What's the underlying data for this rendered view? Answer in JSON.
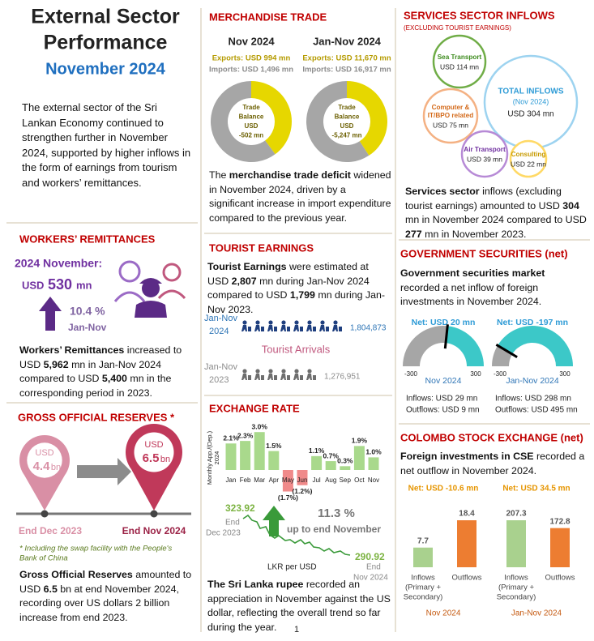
{
  "header": {
    "title_lines": [
      "External Sector",
      "Performance"
    ],
    "subtitle": "November 2024"
  },
  "intro": "The external sector of the Sri Lankan Economy continued to strengthen further in November 2024, supported by higher inflows in the form of earnings from tourism and workers’ remittances.",
  "remittances": {
    "heading": "WORKERS’ REMITTANCES",
    "period": "2024 November:",
    "currency": "USD",
    "amount": "530",
    "unit": "mn",
    "growth": "10.4 %",
    "growth_period": "Jan-Nov",
    "body": [
      {
        "text": "Workers’ Remittances",
        "bold": true
      },
      {
        "text": " increased to USD "
      },
      {
        "text": "5,962",
        "bold": true
      },
      {
        "text": " mn in Jan-Nov 2024 compared to USD "
      },
      {
        "text": "5,400",
        "bold": true
      },
      {
        "text": " mn in the corresponding period in 2023."
      }
    ]
  },
  "reserves": {
    "heading": "GROSS OFFICIAL RESERVES *",
    "pins": [
      {
        "currency": "USD",
        "amount": "4.4",
        "unit": "bn",
        "date": "End Dec 2023"
      },
      {
        "currency": "USD",
        "amount": "6.5",
        "unit": "bn",
        "date": "End Nov 2024"
      }
    ],
    "note_lines": [
      "* Including the swap facility with the People's",
      "Bank of China"
    ],
    "body": [
      {
        "text": "Gross Official Reserves",
        "bold": true
      },
      {
        "text": " amounted to USD "
      },
      {
        "text": "6.5",
        "bold": true
      },
      {
        "text": " bn at end November 2024, recording over US dollars 2 billion increase from end 2023."
      }
    ]
  },
  "merchandise": {
    "heading": "MERCHANDISE TRADE",
    "panels": [
      {
        "period": "Nov 2024",
        "exports": {
          "value": 994,
          "label": "Exports: USD 994 mn"
        },
        "imports": {
          "value": 1496,
          "label": "Imports: USD 1,496 mn"
        },
        "balance": [
          "Trade",
          "Balance",
          "USD",
          "-502 mn"
        ]
      },
      {
        "period": "Jan-Nov 2024",
        "exports": {
          "value": 11670,
          "label": "Exports: USD 11,670 mn"
        },
        "imports": {
          "value": 16917,
          "label": "Imports: USD 16,917 mn"
        },
        "balance": [
          "Trade",
          "Balance",
          "USD",
          "-5,247 mn"
        ]
      }
    ],
    "body": [
      {
        "text": "The "
      },
      {
        "text": "merchandise trade deficit",
        "bold": true
      },
      {
        "text": " widened in November 2024, driven by a significant increase in import expenditure compared to the previous year."
      }
    ]
  },
  "tourism": {
    "heading": "TOURIST EARNINGS",
    "body": [
      {
        "text": "Tourist Earnings",
        "bold": true
      },
      {
        "text": " were estimated at USD "
      },
      {
        "text": "2,807",
        "bold": true
      },
      {
        "text": " mn during Jan-Nov 2024 compared to USD "
      },
      {
        "text": "1,799",
        "bold": true
      },
      {
        "text": " mn during Jan-Nov 2023."
      }
    ],
    "arrivals_title": "Tourist Arrivals",
    "rows": [
      {
        "period": [
          "Jan-Nov",
          "2024"
        ],
        "value": "1,804,873"
      },
      {
        "period": [
          "Jan-Nov",
          "2023"
        ],
        "value": "1,276,951"
      }
    ]
  },
  "exchange": {
    "heading": "EXCHANGE RATE",
    "chart": {
      "type": "bar",
      "y_label": [
        "Monthly App./(Dep.)",
        "2024"
      ],
      "categories": [
        "Jan",
        "Feb",
        "Mar",
        "Apr",
        "May",
        "Jun",
        "Jul",
        "Aug",
        "Sep",
        "Oct",
        "Nov"
      ],
      "values": [
        2.1,
        2.3,
        3.0,
        1.5,
        -1.7,
        -1.2,
        1.1,
        0.7,
        0.3,
        1.9,
        1.0
      ],
      "value_labels": [
        "2.1%",
        "2.3%",
        "3.0%",
        "1.5%",
        "(1.7%)",
        "(1.2%)",
        "1.1%",
        "0.7%",
        "0.3%",
        "1.9%",
        "1.0%"
      ],
      "positive_color": "#a9d98c",
      "negative_color": "#f08a8a"
    },
    "rate_start": {
      "value": "323.92",
      "caption": [
        "End",
        "Dec 2023"
      ]
    },
    "rate_end": {
      "value": "290.92",
      "caption": [
        "End",
        "Nov 2024"
      ]
    },
    "rate_label": "LKR per USD",
    "change": "11.3 %",
    "change_caption": "up to end November",
    "body": [
      {
        "text": "The Sri Lanka rupee",
        "bold": true
      },
      {
        "text": " recorded an appreciation in November against the US dollar, reflecting the overall trend so far during the year."
      }
    ]
  },
  "services": {
    "heading": "SERVICES SECTOR INFLOWS",
    "subheading": "(EXCLUDING TOURIST EARNINGS)",
    "bubbles": [
      {
        "name": [
          "Sea Transport"
        ],
        "amount": "USD 114 mn"
      },
      {
        "name": [
          "TOTAL INFLOWS",
          "(Nov 2024)"
        ],
        "amount": "USD 304 mn"
      },
      {
        "name": [
          "Computer &",
          "IT/BPO related"
        ],
        "amount": "USD 75 mn"
      },
      {
        "name": [
          "Air Transport"
        ],
        "amount": "USD 39 mn"
      },
      {
        "name": [
          "Consulting"
        ],
        "amount": "USD 22 mn"
      }
    ],
    "body": [
      {
        "text": "Services sector",
        "bold": true
      },
      {
        "text": " inflows (excluding tourist earnings) amounted to USD "
      },
      {
        "text": "304",
        "bold": true
      },
      {
        "text": " mn in November 2024 compared to USD "
      },
      {
        "text": "277",
        "bold": true
      },
      {
        "text": " mn in November 2023."
      }
    ]
  },
  "securities": {
    "heading": "GOVERNMENT SECURITIES (net)",
    "body": [
      {
        "text": "Government securities market",
        "bold": true
      },
      {
        "text": " recorded a net inflow of foreign investments in November 2024."
      }
    ],
    "gauges": [
      {
        "net": {
          "value": 20,
          "label": "Net: USD 20 mn"
        },
        "min": -300,
        "max": 300,
        "period": "Nov 2024",
        "flows": [
          "Inflows: USD 29 mn",
          "Outflows: USD 9 mn"
        ]
      },
      {
        "net": {
          "value": -197,
          "label": "Net: USD -197 mn"
        },
        "min": -300,
        "max": 300,
        "period": "Jan-Nov 2024",
        "flows": [
          "Inflows: USD 298 mn",
          "Outflows: USD 495 mn"
        ]
      }
    ]
  },
  "cse": {
    "heading": "COLOMBO STOCK EXCHANGE (net)",
    "body": [
      {
        "text": "Foreign investments in CSE",
        "bold": true
      },
      {
        "text": " recorded a net outflow in November 2024."
      }
    ],
    "categories": [
      [
        "Inflows",
        "(Primary +",
        "Secondary)"
      ],
      [
        "Outflows"
      ]
    ],
    "colors": [
      "#a9d18e",
      "#ed7d31"
    ],
    "panels": [
      {
        "net": "Net: USD -10.6 mn",
        "values": [
          7.7,
          18.4
        ],
        "period": "Nov 2024"
      },
      {
        "net": "Net: USD 34.5 mn",
        "values": [
          207.3,
          172.8
        ],
        "period": "Jan-Nov 2024"
      }
    ]
  },
  "page_number": "1"
}
